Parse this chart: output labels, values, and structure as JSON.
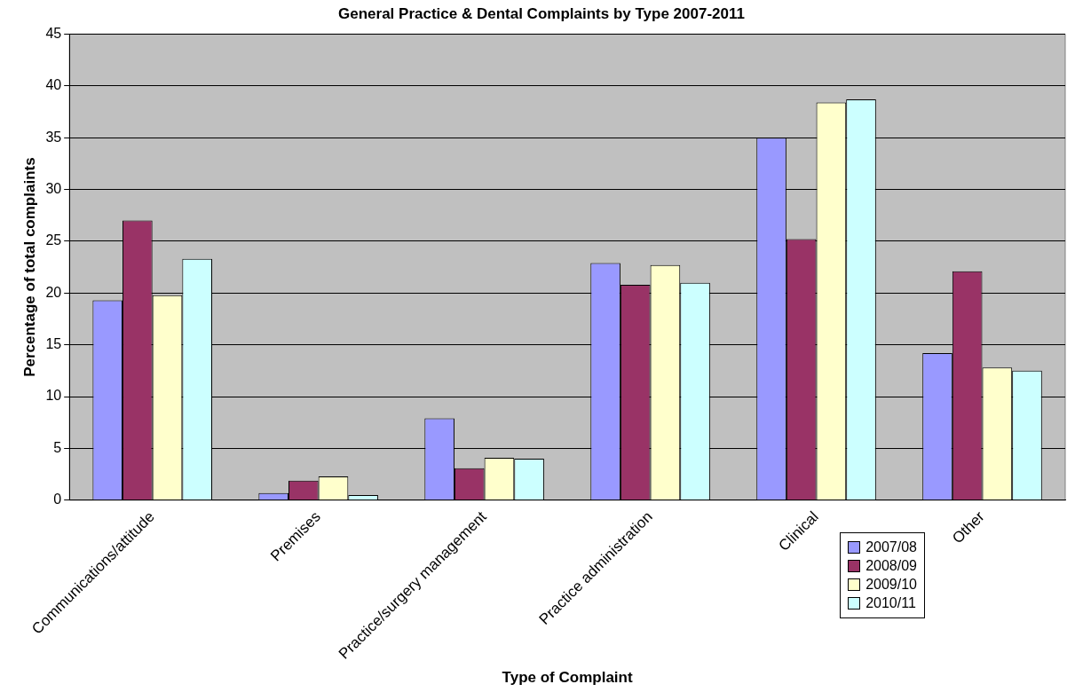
{
  "chart_data": {
    "type": "bar",
    "title": "General Practice & Dental Complaints by Type 2007-2011",
    "xlabel": "Type of Complaint",
    "ylabel": "Percentage of total complaints",
    "categories": [
      "Communications/attitude",
      "Premises",
      "Practice/surgery management",
      "Practice administration",
      "Clinical",
      "Other"
    ],
    "series": [
      {
        "name": "2007/08",
        "color": "#9999ff",
        "values": [
          19.3,
          0.7,
          7.9,
          22.9,
          35.0,
          14.2
        ]
      },
      {
        "name": "2008/09",
        "color": "#993366",
        "values": [
          27.0,
          1.9,
          3.1,
          20.8,
          25.2,
          22.1
        ]
      },
      {
        "name": "2009/10",
        "color": "#ffffcc",
        "values": [
          19.8,
          2.3,
          4.1,
          22.7,
          38.4,
          12.8
        ]
      },
      {
        "name": "2010/11",
        "color": "#ccffff",
        "values": [
          23.3,
          0.5,
          4.0,
          21.0,
          38.7,
          12.5
        ]
      }
    ],
    "ylim": [
      0,
      45
    ],
    "yticks": [
      0,
      5,
      10,
      15,
      20,
      25,
      30,
      35,
      40,
      45
    ],
    "grid": "y",
    "legend": "bottom right"
  }
}
